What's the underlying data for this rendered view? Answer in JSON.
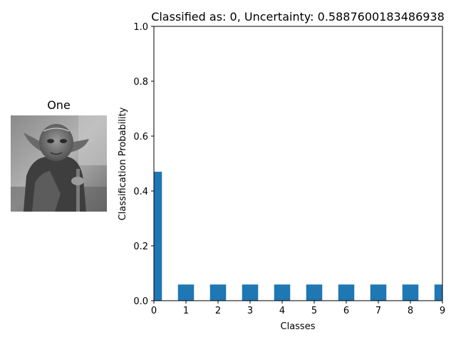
{
  "image_panel": {
    "title": "One"
  },
  "chart_data": {
    "type": "bar",
    "title": "Classified as: 0, Uncertainty: 0.5887600183486938",
    "xlabel": "Classes",
    "ylabel": "Classification Probability",
    "categories": [
      "0",
      "1",
      "2",
      "3",
      "4",
      "5",
      "6",
      "7",
      "8",
      "9"
    ],
    "values": [
      0.47,
      0.059,
      0.059,
      0.059,
      0.059,
      0.059,
      0.059,
      0.059,
      0.059,
      0.059
    ],
    "xlim": [
      0,
      9
    ],
    "ylim": [
      0,
      1.0
    ],
    "yticks": [
      "0.0",
      "0.2",
      "0.4",
      "0.6",
      "0.8",
      "1.0"
    ],
    "bar_color": "#1f77b4",
    "grid": false,
    "legend": "none"
  }
}
